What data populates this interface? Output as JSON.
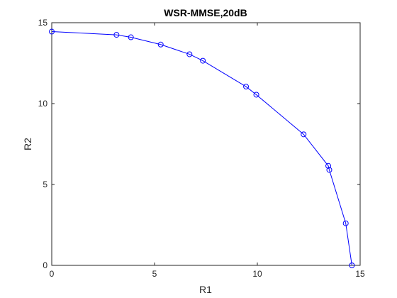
{
  "chart_data": {
    "type": "line",
    "title": "WSR-MMSE,20dB",
    "xlabel": "R1",
    "ylabel": "R2",
    "xlim": [
      0,
      15
    ],
    "ylim": [
      0,
      15
    ],
    "xticks": [
      "0",
      "5",
      "10",
      "15"
    ],
    "yticks": [
      "0",
      "5",
      "10",
      "15"
    ],
    "grid": false,
    "series": [
      {
        "marker": "circle",
        "color": "#0000ff",
        "points": [
          {
            "x": 0.0,
            "y": 14.45
          },
          {
            "x": 3.15,
            "y": 14.25
          },
          {
            "x": 3.85,
            "y": 14.1
          },
          {
            "x": 5.3,
            "y": 13.65
          },
          {
            "x": 6.7,
            "y": 13.05
          },
          {
            "x": 7.35,
            "y": 12.65
          },
          {
            "x": 9.45,
            "y": 11.05
          },
          {
            "x": 9.95,
            "y": 10.55
          },
          {
            "x": 12.25,
            "y": 8.1
          },
          {
            "x": 13.45,
            "y": 6.15
          },
          {
            "x": 13.5,
            "y": 5.9
          },
          {
            "x": 14.3,
            "y": 2.6
          },
          {
            "x": 14.6,
            "y": 0.0
          }
        ]
      }
    ]
  }
}
